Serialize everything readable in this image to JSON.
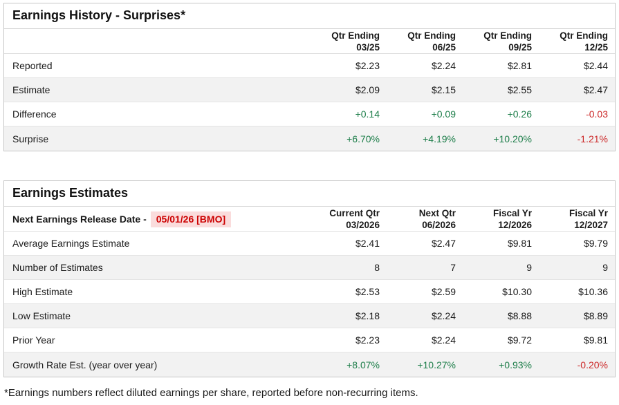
{
  "colors": {
    "positive": "#1e7e4a",
    "negative": "#cc2929",
    "release_date_text": "#cc0000",
    "release_date_bg": "#fadcdc",
    "row_alt_bg": "#f2f2f2"
  },
  "history": {
    "title": "Earnings History - Surprises*",
    "columns": [
      {
        "line1": "Qtr Ending",
        "line2": "03/25"
      },
      {
        "line1": "Qtr Ending",
        "line2": "06/25"
      },
      {
        "line1": "Qtr Ending",
        "line2": "09/25"
      },
      {
        "line1": "Qtr Ending",
        "line2": "12/25"
      }
    ],
    "rows": [
      {
        "label": "Reported",
        "values": [
          "$2.23",
          "$2.24",
          "$2.81",
          "$2.44"
        ],
        "colors": [
          null,
          null,
          null,
          null
        ]
      },
      {
        "label": "Estimate",
        "values": [
          "$2.09",
          "$2.15",
          "$2.55",
          "$2.47"
        ],
        "colors": [
          null,
          null,
          null,
          null
        ]
      },
      {
        "label": "Difference",
        "values": [
          "+0.14",
          "+0.09",
          "+0.26",
          "-0.03"
        ],
        "colors": [
          "positive",
          "positive",
          "positive",
          "negative"
        ]
      },
      {
        "label": "Surprise",
        "values": [
          "+6.70%",
          "+4.19%",
          "+10.20%",
          "-1.21%"
        ],
        "colors": [
          "positive",
          "positive",
          "positive",
          "negative"
        ]
      }
    ]
  },
  "estimates": {
    "title": "Earnings Estimates",
    "release_label": "Next Earnings Release Date -",
    "release_date": "05/01/26 [BMO]",
    "columns": [
      {
        "line1": "Current Qtr",
        "line2": "03/2026"
      },
      {
        "line1": "Next Qtr",
        "line2": "06/2026"
      },
      {
        "line1": "Fiscal Yr",
        "line2": "12/2026"
      },
      {
        "line1": "Fiscal Yr",
        "line2": "12/2027"
      }
    ],
    "rows": [
      {
        "label": "Average Earnings Estimate",
        "values": [
          "$2.41",
          "$2.47",
          "$9.81",
          "$9.79"
        ],
        "colors": [
          null,
          null,
          null,
          null
        ]
      },
      {
        "label": "Number of Estimates",
        "values": [
          "8",
          "7",
          "9",
          "9"
        ],
        "colors": [
          null,
          null,
          null,
          null
        ]
      },
      {
        "label": "High Estimate",
        "values": [
          "$2.53",
          "$2.59",
          "$10.30",
          "$10.36"
        ],
        "colors": [
          null,
          null,
          null,
          null
        ]
      },
      {
        "label": "Low Estimate",
        "values": [
          "$2.18",
          "$2.24",
          "$8.88",
          "$8.89"
        ],
        "colors": [
          null,
          null,
          null,
          null
        ]
      },
      {
        "label": "Prior Year",
        "values": [
          "$2.23",
          "$2.24",
          "$9.72",
          "$9.81"
        ],
        "colors": [
          null,
          null,
          null,
          null
        ]
      },
      {
        "label": "Growth Rate Est. (year over year)",
        "values": [
          "+8.07%",
          "+10.27%",
          "+0.93%",
          "-0.20%"
        ],
        "colors": [
          "positive",
          "positive",
          "positive",
          "negative"
        ]
      }
    ]
  },
  "page": {
    "footnote": "*Earnings numbers reflect diluted earnings per share, reported before non-recurring items."
  }
}
